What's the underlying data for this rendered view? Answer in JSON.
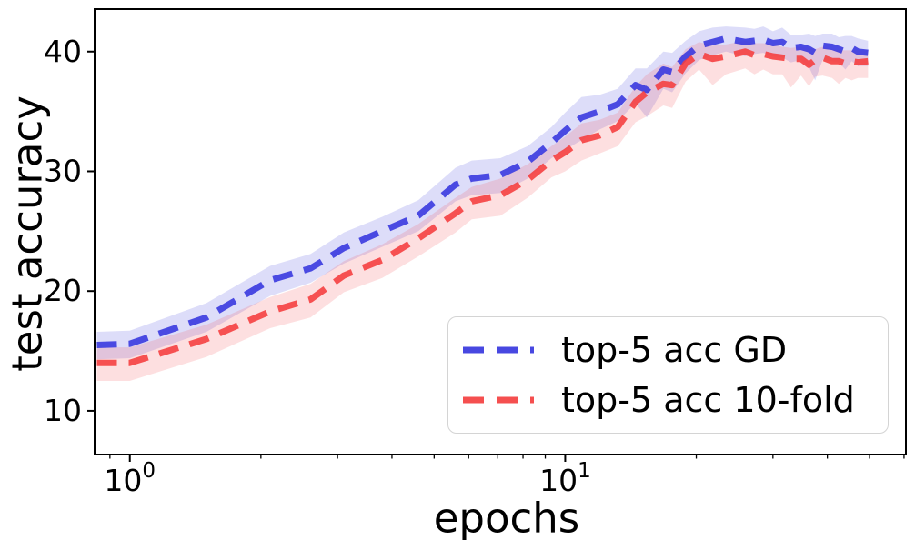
{
  "chart_data": {
    "type": "line",
    "title": "",
    "x_axis": {
      "label": "epochs",
      "scale": "log",
      "min": 0.83,
      "max": 60.6,
      "major_ticks": [
        {
          "value": 1,
          "base": "10",
          "exp": "0"
        },
        {
          "value": 10,
          "base": "10",
          "exp": "1"
        }
      ],
      "minor_ticks": [
        0.9,
        2,
        3,
        4,
        5,
        6,
        7,
        8,
        9,
        20,
        30,
        40,
        50,
        60
      ]
    },
    "y_axis": {
      "label": "test accuracy",
      "scale": "linear",
      "min": 6.35,
      "max": 43.55,
      "ticks": [
        10,
        20,
        30,
        40
      ]
    },
    "legend": {
      "position": "lower right"
    },
    "x": [
      0.84,
      1.0,
      1.5,
      2.1,
      2.6,
      3.1,
      3.8,
      4.6,
      5.6,
      6.1,
      7.1,
      8.2,
      9.3,
      10.0,
      10.9,
      12.0,
      13.2,
      14.5,
      15.4,
      16.8,
      17.6,
      18.9,
      20.3,
      21.8,
      23.4,
      25.9,
      27.2,
      28.5,
      30.0,
      31.5,
      33.0,
      34.8,
      36.3,
      37.5,
      39.0,
      41.0,
      42.5,
      44.0,
      45.5,
      47.0,
      49.6
    ],
    "series": [
      {
        "name": "top-5 acc GD",
        "color": "#3535de",
        "band_color": "#4444dd",
        "band_opacity": 0.18,
        "line_style": "dashed",
        "y": [
          15.5,
          15.6,
          17.8,
          20.9,
          21.9,
          23.6,
          25.0,
          26.3,
          28.9,
          29.4,
          29.7,
          30.8,
          32.4,
          33.4,
          34.5,
          35.0,
          35.6,
          37.2,
          36.8,
          38.5,
          38.3,
          39.6,
          40.5,
          40.8,
          41.1,
          40.8,
          40.9,
          41.0,
          40.7,
          40.8,
          40.3,
          40.4,
          40.2,
          39.9,
          40.5,
          40.4,
          40.2,
          40.0,
          40.3,
          40.0,
          39.9
        ],
        "band_upper": [
          16.6,
          16.7,
          19.0,
          22.1,
          23.1,
          24.9,
          26.2,
          27.6,
          30.3,
          30.9,
          31.1,
          32.1,
          33.7,
          34.9,
          36.2,
          36.4,
          36.9,
          38.6,
          38.6,
          40.0,
          39.9,
          40.9,
          41.7,
          42.0,
          42.1,
          42.0,
          41.9,
          42.1,
          41.7,
          42.0,
          41.4,
          41.4,
          41.5,
          41.3,
          41.5,
          41.5,
          41.2,
          41.3,
          41.3,
          41.1,
          40.9
        ],
        "band_lower": [
          14.3,
          14.4,
          16.6,
          19.6,
          20.7,
          22.3,
          23.7,
          25.0,
          27.5,
          28.0,
          28.2,
          29.4,
          31.1,
          31.8,
          32.6,
          33.5,
          34.2,
          35.7,
          34.5,
          36.9,
          36.6,
          38.2,
          39.3,
          39.7,
          40.0,
          39.6,
          39.8,
          39.9,
          39.6,
          39.5,
          39.1,
          39.3,
          38.7,
          37.6,
          39.3,
          39.2,
          39.1,
          38.5,
          39.2,
          38.8,
          38.8
        ]
      },
      {
        "name": "top-5 acc 10-fold",
        "color": "#f53c3c",
        "band_color": "#f64b55",
        "band_opacity": 0.18,
        "line_style": "dashed",
        "y": [
          14.0,
          14.0,
          16.0,
          18.3,
          19.3,
          21.3,
          22.6,
          24.4,
          26.5,
          27.5,
          28.0,
          29.3,
          30.9,
          31.6,
          32.6,
          33.0,
          33.7,
          35.8,
          36.6,
          37.3,
          37.2,
          39.0,
          39.8,
          39.4,
          39.6,
          40.0,
          39.7,
          39.8,
          39.6,
          39.5,
          39.4,
          39.4,
          38.9,
          39.3,
          39.5,
          39.2,
          39.2,
          39.0,
          39.2,
          39.1,
          39.2
        ],
        "band_upper": [
          15.3,
          15.3,
          17.2,
          19.5,
          20.6,
          22.5,
          23.9,
          25.6,
          27.8,
          28.7,
          29.4,
          30.6,
          32.1,
          32.9,
          34.0,
          34.3,
          34.9,
          37.1,
          38.1,
          39.0,
          38.7,
          40.2,
          40.8,
          40.5,
          40.6,
          40.9,
          40.7,
          40.7,
          40.6,
          40.4,
          40.3,
          40.4,
          40.3,
          40.2,
          40.4,
          40.2,
          40.1,
          40.1,
          40.1,
          40.1,
          40.1
        ],
        "band_lower": [
          12.5,
          12.5,
          14.5,
          16.9,
          17.8,
          19.9,
          21.1,
          22.9,
          24.9,
          26.0,
          26.3,
          27.8,
          29.5,
          30.0,
          30.9,
          31.5,
          32.1,
          34.1,
          34.6,
          35.5,
          35.3,
          37.5,
          38.5,
          37.2,
          38.1,
          38.6,
          38.1,
          38.5,
          38.1,
          38.1,
          37.0,
          38.0,
          37.1,
          37.9,
          38.0,
          37.8,
          37.3,
          37.8,
          37.6,
          37.8,
          37.8
        ]
      }
    ]
  }
}
